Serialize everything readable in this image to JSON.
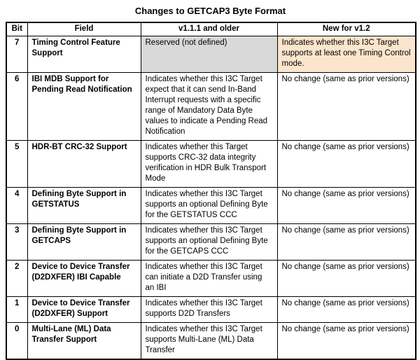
{
  "title": "Changes to GETCAP3 Byte Format",
  "colors": {
    "reserved_bg": "#d9d9d9",
    "new_highlight_bg": "#fce5cd",
    "border": "#000000"
  },
  "table": {
    "headers": {
      "bit": "Bit",
      "field": "Field",
      "old": "v1.1.1 and older",
      "new": "New for v1.2"
    },
    "rows": [
      {
        "bit": "7",
        "field": "Timing Control Feature Support",
        "old": "Reserved (not defined)",
        "new": "Indicates whether this I3C Target supports at least one Timing Control mode."
      },
      {
        "bit": "6",
        "field": "IBI MDB Support for Pending Read Notification",
        "old": "Indicates whether this I3C Target expect that it can send In-Band Interrupt requests with a specific range of Mandatory Data Byte values to indicate a Pending Read Notification",
        "new": "No change (same as prior versions)"
      },
      {
        "bit": "5",
        "field": "HDR-BT CRC-32 Support",
        "old": "Indicates whether this Target supports CRC-32 data integrity verification in HDR Bulk Transport Mode",
        "new": "No change (same as prior versions)"
      },
      {
        "bit": "4",
        "field": "Defining Byte Support in GETSTATUS",
        "old": "Indicates whether this I3C Target supports an optional Defining Byte for the GETSTATUS CCC",
        "new": "No change (same as prior versions)"
      },
      {
        "bit": "3",
        "field": "Defining Byte Support in GETCAPS",
        "old": "Indicates whether this I3C Target supports an optional Defining Byte for the GETCAPS CCC",
        "new": "No change (same as prior versions)"
      },
      {
        "bit": "2",
        "field": "Device to Device Transfer (D2DXFER) IBI Capable",
        "old": "Indicates whether this I3C Target can initiate a D2D Transfer using an IBI",
        "new": "No change (same as prior versions)"
      },
      {
        "bit": "1",
        "field": "Device to Device Transfer (D2DXFER) Support",
        "old": "Indicates whether this I3C Target supports D2D Transfers",
        "new": "No change (same as prior versions)"
      },
      {
        "bit": "0",
        "field": "Multi-Lane (ML) Data Transfer Support",
        "old": "Indicates whether this I3C Target supports Multi-Lane (ML) Data Transfer",
        "new": "No change (same as prior versions)"
      }
    ]
  }
}
